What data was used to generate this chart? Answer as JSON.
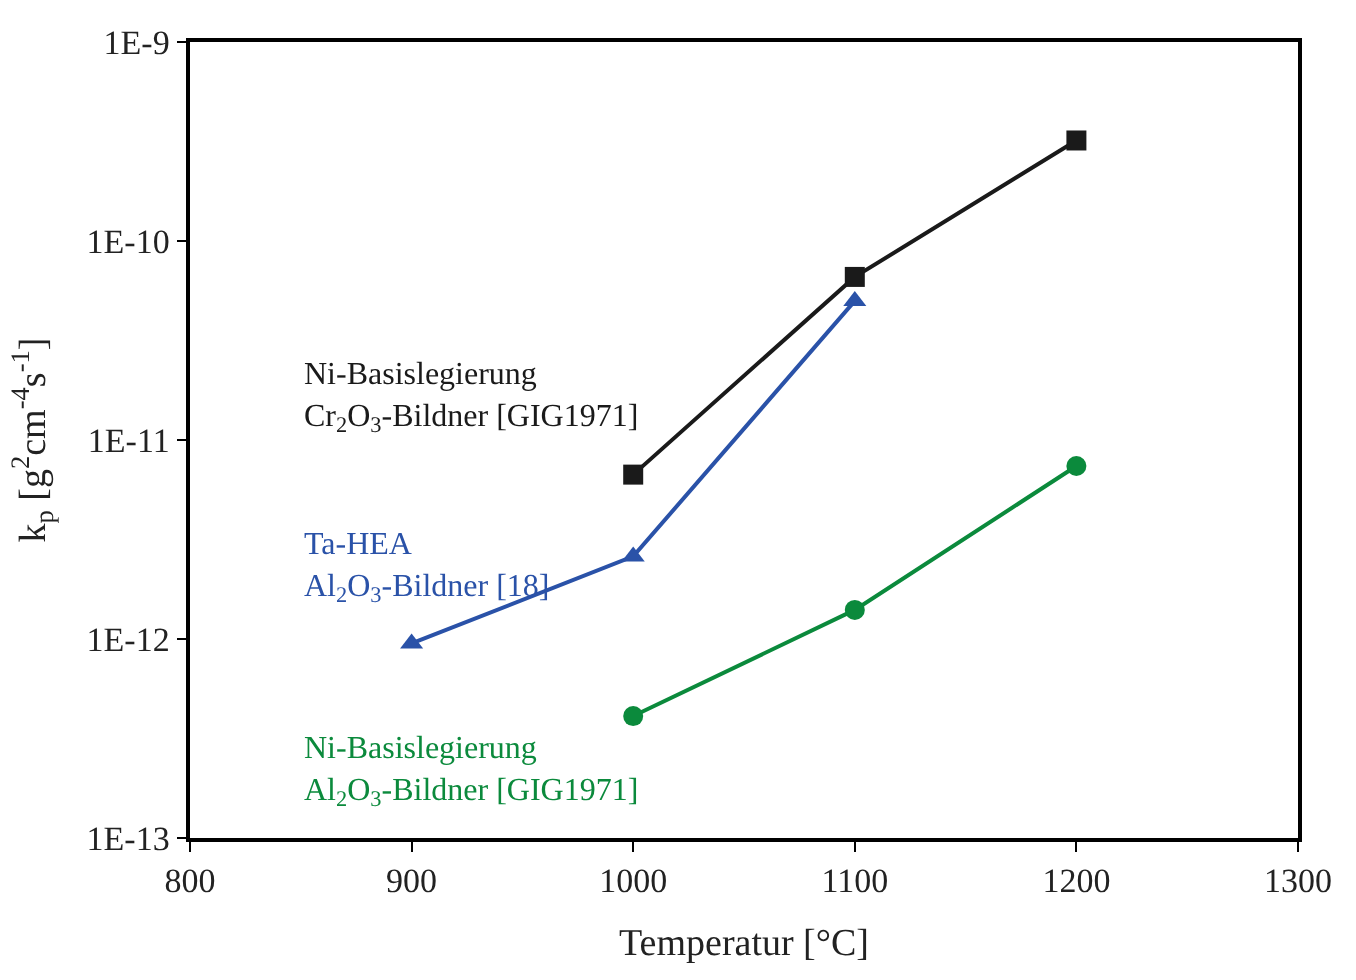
{
  "chart_data": {
    "type": "line",
    "xlabel": "Temperatur [°C]",
    "ylabel": "k$_{p}$ [g$^{2}$cm$^{-4}$s$^{-1}$]",
    "log": "y",
    "xlim": [
      800,
      1300
    ],
    "xticks": [
      800,
      900,
      1000,
      1100,
      1200,
      1300
    ],
    "ylim": [
      1e-13,
      1e-09
    ],
    "yticks": [
      {
        "value": 1e-13,
        "label": "1E-13"
      },
      {
        "value": 1e-12,
        "label": "1E-12"
      },
      {
        "value": 1e-11,
        "label": "1E-11"
      },
      {
        "value": 1e-10,
        "label": "1E-10"
      },
      {
        "value": 1e-09,
        "label": "1E-9"
      }
    ],
    "legend": false,
    "series": [
      {
        "name": "Ni-Basislegierung\nCr$_{2}$O$_{3}$-Bildner [GIG1971]",
        "color": "#1a1a1a",
        "marker": "square",
        "x": [
          1000,
          1100,
          1200
        ],
        "values": [
          6.7e-12,
          6.6e-11,
          3.2e-10
        ]
      },
      {
        "name": "Ta-HEA\nAl$_{2}$O$_{3}$-Bildner [18]",
        "color": "#2a52a8",
        "marker": "triangle",
        "x": [
          900,
          1000,
          1100
        ],
        "values": [
          9.5e-13,
          2.6e-12,
          5e-11
        ]
      },
      {
        "name": "Ni-Basislegierung\nAl$_{2}$O$_{3}$-Bildner [GIG1971]",
        "color": "#0b8a3c",
        "marker": "circle",
        "x": [
          1000,
          1100,
          1200
        ],
        "values": [
          4.1e-13,
          1.4e-12,
          7.4e-12
        ]
      }
    ]
  }
}
